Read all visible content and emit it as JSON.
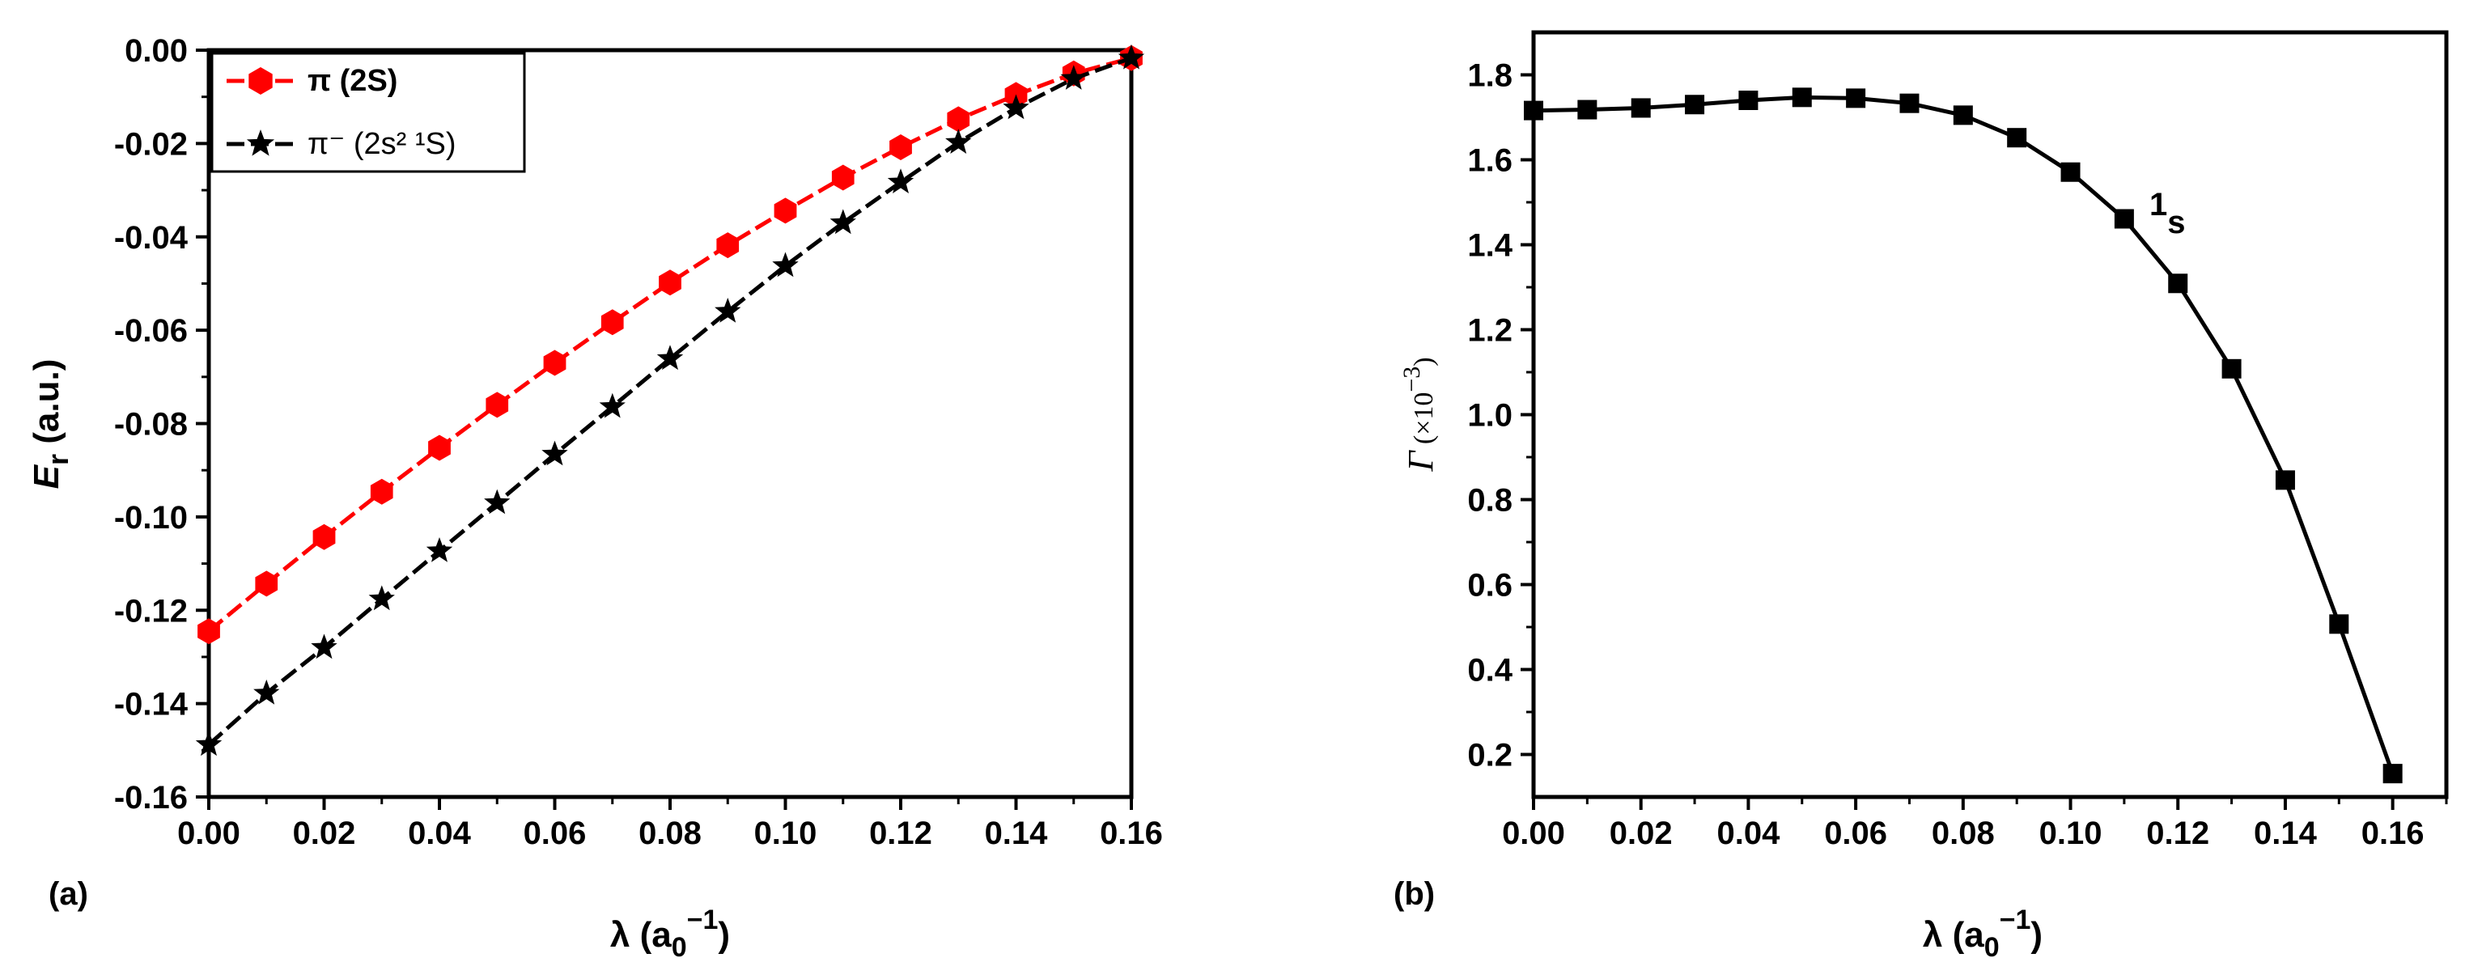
{
  "chart_data": [
    {
      "panel_label": "(a)",
      "type": "line",
      "xlabel": {
        "main": "λ (a",
        "sub": "0",
        "sup": "−1",
        "close": ")"
      },
      "ylabel": {
        "main": "E",
        "sub": "r",
        "rest": " (a.u.)"
      },
      "xlim": [
        0,
        0.16
      ],
      "ylim": [
        -0.16,
        0
      ],
      "xticks": [
        "0.00",
        "0.02",
        "0.04",
        "0.06",
        "0.08",
        "0.10",
        "0.12",
        "0.14",
        "0.16"
      ],
      "yticks": [
        "0.00",
        "-0.02",
        "-0.04",
        "-0.06",
        "-0.08",
        "-0.10",
        "-0.12",
        "-0.14",
        "-0.16"
      ],
      "x": [
        0,
        0.01,
        0.02,
        0.03,
        0.04,
        0.05,
        0.06,
        0.07,
        0.08,
        0.09,
        0.1,
        0.11,
        0.12,
        0.13,
        0.14,
        0.15,
        0.16
      ],
      "legend_position": "top-left",
      "series": [
        {
          "name": "π (2S)",
          "color": "#ff0000",
          "marker": "hexagon",
          "values": [
            -0.1245,
            -0.1143,
            -0.1043,
            -0.0946,
            -0.0852,
            -0.076,
            -0.067,
            -0.0583,
            -0.0498,
            -0.0418,
            -0.0344,
            -0.0273,
            -0.0208,
            -0.0148,
            -0.0096,
            -0.005,
            -0.0017
          ]
        },
        {
          "name": "π⁻ (2s² ¹S)",
          "color": "#000000",
          "marker": "star",
          "values": [
            -0.1488,
            -0.1378,
            -0.128,
            -0.1176,
            -0.1073,
            -0.097,
            -0.0866,
            -0.0764,
            -0.0661,
            -0.056,
            -0.0462,
            -0.037,
            -0.0283,
            -0.0198,
            -0.0124,
            -0.0061,
            -0.0017
          ]
        }
      ]
    },
    {
      "panel_label": "(b)",
      "type": "line",
      "xlabel": {
        "main": "λ (a",
        "sub": "0",
        "sup": "−1",
        "close": ")"
      },
      "ylabel": {
        "main": "Γ",
        "rest": " (×10",
        "sup": "−3",
        "close": ")"
      },
      "xlim": [
        0,
        0.17
      ],
      "ylim": [
        0.1,
        1.9
      ],
      "xticks": [
        "0.00",
        "0.02",
        "0.04",
        "0.06",
        "0.08",
        "0.10",
        "0.12",
        "0.14",
        "0.16"
      ],
      "yticks": [
        "0.2",
        "0.4",
        "0.6",
        "0.8",
        "1.0",
        "1.2",
        "1.4",
        "1.6",
        "1.8"
      ],
      "annotation": {
        "main": "1",
        "sub": "s"
      },
      "x": [
        0,
        0.01,
        0.02,
        0.03,
        0.04,
        0.05,
        0.06,
        0.07,
        0.08,
        0.09,
        0.1,
        0.11,
        0.12,
        0.13,
        0.14,
        0.15,
        0.16
      ],
      "series": [
        {
          "color": "#000000",
          "marker": "square",
          "values": [
            1.716,
            1.718,
            1.722,
            1.73,
            1.74,
            1.747,
            1.745,
            1.733,
            1.705,
            1.652,
            1.571,
            1.461,
            1.309,
            1.108,
            0.846,
            0.507,
            0.155
          ]
        }
      ]
    }
  ]
}
